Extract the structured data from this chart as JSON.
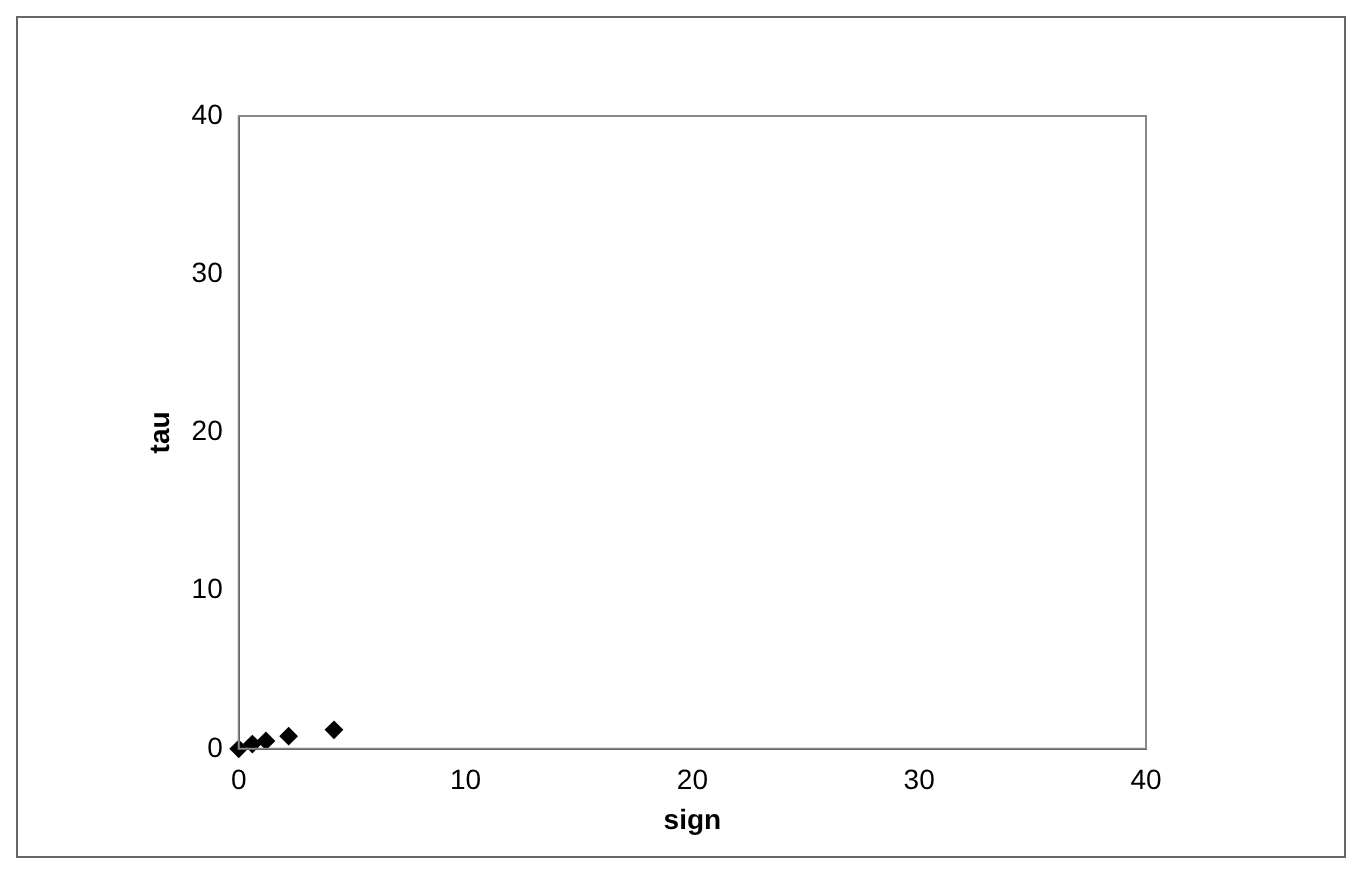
{
  "chart_data": {
    "type": "scatter",
    "xlabel": "sign",
    "ylabel": "tau",
    "x": [
      0,
      0.6,
      1.2,
      2.2,
      4.2
    ],
    "values": [
      0,
      0.3,
      0.5,
      0.8,
      1.2
    ],
    "color": "#000000",
    "marker": "diamond",
    "xlim": [
      0,
      40
    ],
    "xticks": [
      0,
      10,
      20,
      30,
      40
    ],
    "ylim": [
      0,
      40
    ],
    "yticks": [
      0,
      10,
      20,
      30,
      40
    ],
    "grid": false,
    "legend": false
  }
}
